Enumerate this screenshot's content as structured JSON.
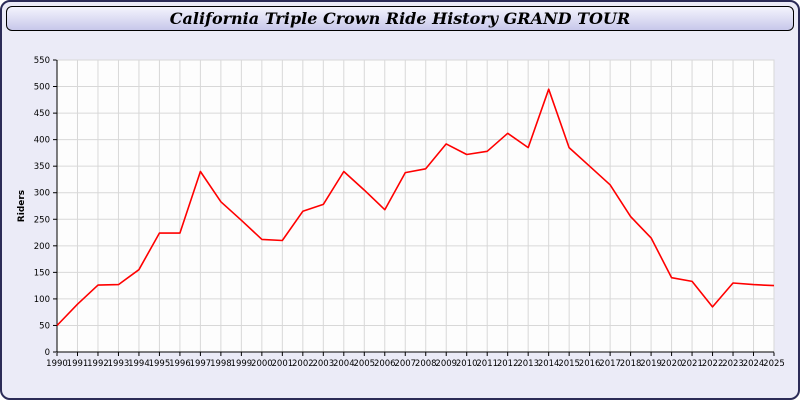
{
  "window": {
    "title": "California Triple Crown Ride History GRAND TOUR"
  },
  "colors": {
    "window_bg": "#ebebf7",
    "window_border": "#2b2b57",
    "titlebar_top": "#f4f4fd",
    "titlebar_bottom": "#c7c7ea",
    "plot_bg": "#fdfdfd",
    "grid": "#d8d8d8",
    "axis": "#000000",
    "line": "#ff0000"
  },
  "chart_data": {
    "type": "line",
    "title": "California Triple Crown Ride History GRAND TOUR",
    "xlabel": "",
    "ylabel": "Riders",
    "ylim": [
      0,
      550
    ],
    "ytick_step": 50,
    "grid": true,
    "legend_position": "none",
    "x": [
      1990,
      1991,
      1992,
      1993,
      1994,
      1995,
      1996,
      1997,
      1998,
      1999,
      2000,
      2001,
      2002,
      2003,
      2004,
      2005,
      2006,
      2007,
      2008,
      2009,
      2010,
      2011,
      2012,
      2013,
      2014,
      2015,
      2016,
      2017,
      2018,
      2019,
      2020,
      2021,
      2022,
      2023,
      2024,
      2025
    ],
    "series": [
      {
        "name": "Riders",
        "color": "#ff0000",
        "values": [
          50,
          90,
          126,
          127,
          155,
          224,
          224,
          340,
          283,
          248,
          212,
          210,
          265,
          278,
          340,
          305,
          268,
          338,
          345,
          392,
          372,
          378,
          412,
          385,
          495,
          385,
          350,
          315,
          255,
          215,
          140,
          133,
          85,
          130,
          127,
          125
        ]
      }
    ]
  }
}
